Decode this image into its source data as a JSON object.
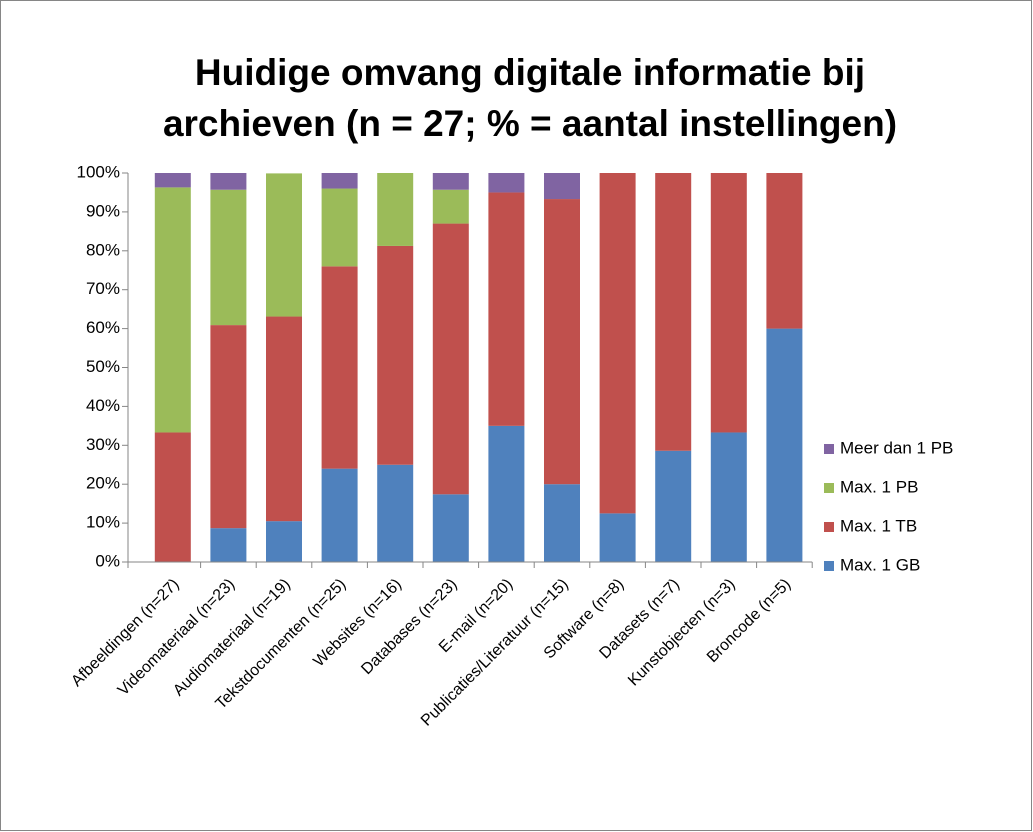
{
  "chart_data": {
    "type": "stacked_bar",
    "title": [
      "Huidige omvang digitale informatie bij",
      "archieven (n = 27; % = aantal instellingen)"
    ],
    "categories": [
      "Afbeeldingen (n=27)",
      "Videomateriaal (n=23)",
      "Audiomateriaal (n=19)",
      "Tekstdocumenten (n=25)",
      "Websites (n=16)",
      "Databases (n=23)",
      "E-mail (n=20)",
      "Publicaties/Literatuur (n=15)",
      "Software (n=8)",
      "Datasets (n=7)",
      "Kunstobjecten (n=3)",
      "Broncode (n=5)"
    ],
    "series": [
      {
        "name": "Max. 1 GB",
        "color": "#4f81bd",
        "values": [
          0,
          8.7,
          10.5,
          24,
          25,
          17.4,
          35,
          20,
          12.5,
          28.6,
          33.3,
          60
        ]
      },
      {
        "name": "Max. 1 TB",
        "color": "#c0504d",
        "values": [
          33.3,
          52.2,
          52.6,
          52,
          56.25,
          69.6,
          60,
          73.3,
          87.5,
          71.4,
          66.7,
          40
        ]
      },
      {
        "name": "Max. 1 PB",
        "color": "#9bbb59",
        "values": [
          63,
          34.8,
          36.8,
          20,
          18.75,
          8.7,
          0,
          0,
          0,
          0,
          0,
          0
        ]
      },
      {
        "name": "Meer dan 1 PB",
        "color": "#8064a2",
        "values": [
          3.7,
          4.3,
          0,
          4,
          0,
          4.3,
          5,
          6.7,
          0,
          0,
          0,
          0
        ]
      }
    ],
    "ylim": [
      0,
      100
    ],
    "yticks": [
      {
        "value": 0,
        "label": "0%"
      },
      {
        "value": 10,
        "label": "10%"
      },
      {
        "value": 20,
        "label": "20%"
      },
      {
        "value": 30,
        "label": "30%"
      },
      {
        "value": 40,
        "label": "40%"
      },
      {
        "value": 50,
        "label": "50%"
      },
      {
        "value": 60,
        "label": "60%"
      },
      {
        "value": 70,
        "label": "70%"
      },
      {
        "value": 80,
        "label": "80%"
      },
      {
        "value": 90,
        "label": "90%"
      },
      {
        "value": 100,
        "label": "100%"
      }
    ],
    "legend": "right"
  }
}
